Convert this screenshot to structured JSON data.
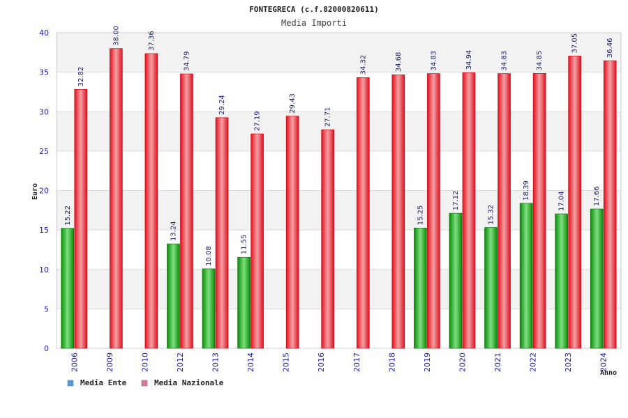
{
  "colors": {
    "ente": "#22b422",
    "nazionale": "#e8202a",
    "legend_ente": "#5b9bd5",
    "legend_nazionale": "#d47ba0",
    "band": "#f2f2f2",
    "grid": "#dcdcdc",
    "tick_text": "#1a1aa6"
  },
  "chart_data": {
    "type": "bar",
    "title": "FONTEGRECA (c.f.82000820611)",
    "subtitle": "Media Importi",
    "xlabel": "Anno",
    "ylabel": "Euro",
    "ylim": [
      0,
      40
    ],
    "yticks": [
      "0",
      "5",
      "10",
      "15",
      "20",
      "25",
      "30",
      "35",
      "40"
    ],
    "categories": [
      "2006",
      "2009",
      "2010",
      "2012",
      "2013",
      "2014",
      "2015",
      "2016",
      "2017",
      "2018",
      "2019",
      "2020",
      "2021",
      "2022",
      "2023",
      "2024"
    ],
    "series": [
      {
        "name": "Media Ente",
        "values": [
          15.22,
          null,
          null,
          13.24,
          10.08,
          11.55,
          null,
          null,
          null,
          null,
          15.25,
          17.12,
          15.32,
          18.39,
          17.04,
          17.66
        ],
        "labels": [
          "15.22",
          "",
          "",
          "13.24",
          "10.08",
          "11.55",
          "",
          "",
          "",
          "",
          "15.25",
          "17.12",
          "15.32",
          "18.39",
          "17.04",
          "17.66"
        ]
      },
      {
        "name": "Media Nazionale",
        "values": [
          32.82,
          38.0,
          37.36,
          34.79,
          29.24,
          27.19,
          29.43,
          27.71,
          34.32,
          34.68,
          34.83,
          34.94,
          34.83,
          34.85,
          37.05,
          36.46
        ],
        "labels": [
          "32.82",
          "38.00",
          "37.36",
          "34.79",
          "29.24",
          "27.19",
          "29.43",
          "27.71",
          "34.32",
          "34.68",
          "34.83",
          "34.94",
          "34.83",
          "34.85",
          "37.05",
          "36.46"
        ]
      }
    ],
    "grid": true,
    "legend_position": "bottom-left"
  }
}
